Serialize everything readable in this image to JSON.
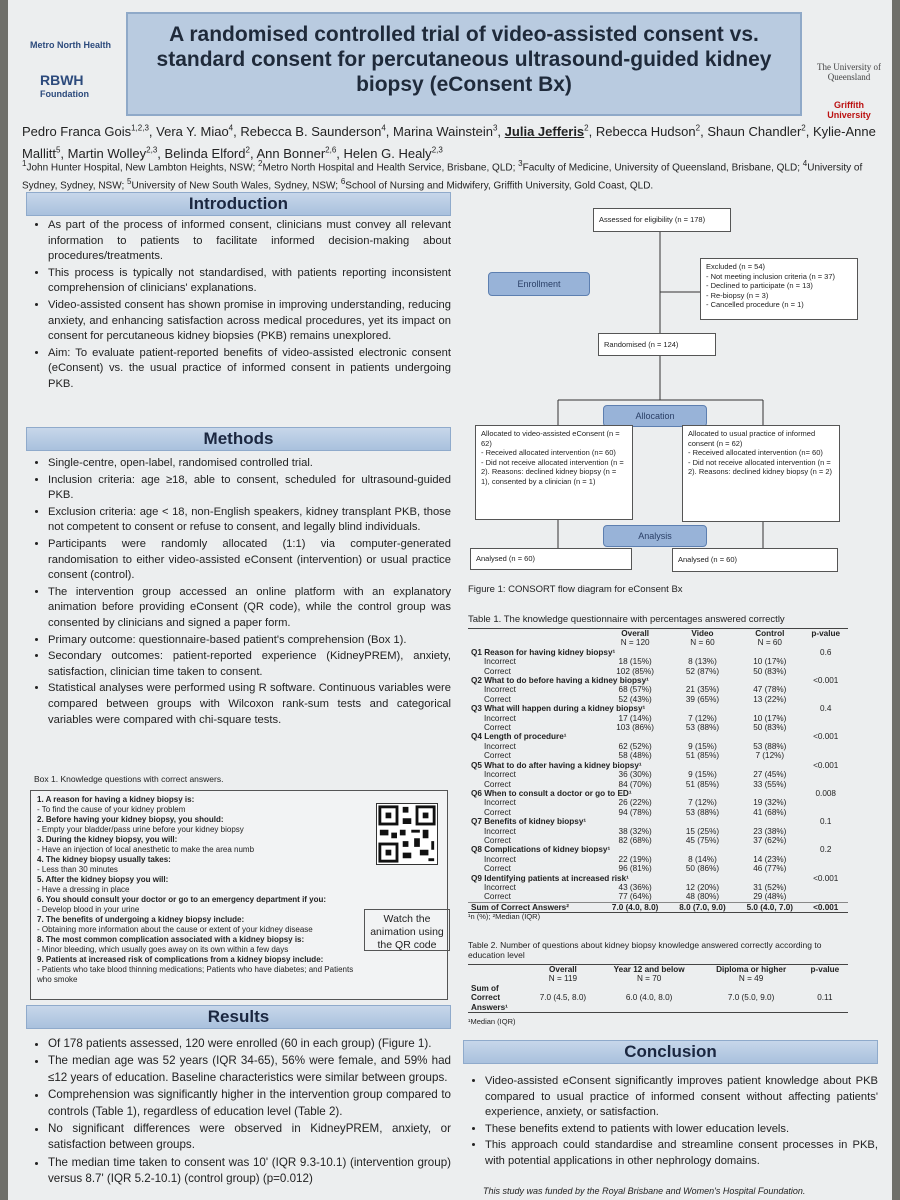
{
  "header": {
    "title": "A randomised controlled trial of video-assisted consent vs. standard consent for percutaneous ultrasound-guided kidney biopsy (eConsent Bx)",
    "logo_left_1": "Metro North Health",
    "logo_left_2": "RBWH",
    "logo_left_3": "Foundation",
    "logo_right_1": "The University of Queensland",
    "logo_right_2": "Griffith University",
    "authors": [
      {
        "name": "Pedro Franca Gois",
        "sup": "1,2,3",
        "sep": ","
      },
      {
        "name": "Vera Y. Miao",
        "sup": "4",
        "sep": ","
      },
      {
        "name": "Rebecca B. Saunderson",
        "sup": "4",
        "sep": ","
      },
      {
        "name": "Marina Wainstein",
        "sup": "3",
        "sep": ","
      },
      {
        "name": "Julia Jefferis",
        "sup": "2",
        "sep": ","
      },
      {
        "name": "Rebecca Hudson",
        "sup": "2",
        "sep": ","
      },
      {
        "name": "Shaun Chandler",
        "sup": "2",
        "sep": ","
      },
      {
        "name": "Kylie-Anne Mallitt",
        "sup": "5",
        "sep": ","
      },
      {
        "name": "Martin Wolley",
        "sup": "2,3",
        "sep": ","
      },
      {
        "name": "Belinda Elford",
        "sup": "2",
        "sep": ","
      },
      {
        "name": "Ann Bonner",
        "sup": "2,6",
        "sep": ","
      },
      {
        "name": "Helen G. Healy",
        "sup": "2,3"
      }
    ],
    "affiliations": [
      {
        "sup": "1",
        "text": "John Hunter Hospital, New Lambton Heights, NSW;"
      },
      {
        "sup": "2",
        "text": "Metro North Hospital and Health Service, Brisbane, QLD;"
      },
      {
        "sup": "3",
        "text": "Faculty of Medicine, University of Queensland, Brisbane, QLD;"
      },
      {
        "sup": "4",
        "text": "University of Sydney, Sydney, NSW;"
      },
      {
        "sup": "5",
        "text": "University of New South Wales, Sydney, NSW;"
      },
      {
        "sup": "6",
        "text": "School of Nursing and Midwifery, Griffith University, Gold Coast, QLD."
      }
    ]
  },
  "introduction": {
    "heading": "Introduction",
    "bullets": [
      "As part of the process of informed consent, clinicians must convey all relevant information to patients to facilitate informed decision-making about procedures/treatments.",
      "This process is typically not standardised, with patients reporting inconsistent comprehension of clinicians' explanations.",
      "Video-assisted consent has shown promise in improving understanding, reducing anxiety, and enhancing satisfaction across medical procedures, yet its impact on consent for percutaneous kidney biopsies (PKB) remains unexplored.",
      "Aim: To evaluate patient-reported benefits of video-assisted electronic consent (eConsent) vs. the usual practice of informed consent in patients undergoing PKB."
    ]
  },
  "methods": {
    "heading": "Methods",
    "bullets": [
      "Single-centre, open-label, randomised controlled trial.",
      "Inclusion criteria: age ≥18, able to consent, scheduled for ultrasound-guided PKB.",
      "Exclusion criteria: age < 18, non-English speakers, kidney transplant PKB, those not competent to consent or refuse to consent, and legally blind individuals.",
      "Participants were randomly allocated (1:1) via computer-generated randomisation to either video-assisted eConsent (intervention) or usual practice consent (control).",
      "The intervention group accessed an online platform with an explanatory animation before providing eConsent (QR code), while the control group was consented by clinicians and signed a paper form.",
      "Primary outcome: questionnaire-based patient's comprehension (Box 1).",
      "Secondary outcomes: patient-reported experience (KidneyPREM), anxiety, satisfaction, clinician time taken to consent.",
      "Statistical analyses were performed using R software. Continuous variables were compared between groups with Wilcoxon rank-sum tests and categorical variables were compared with chi-square tests."
    ]
  },
  "box1": {
    "title": "Box 1. Knowledge questions with correct answers.",
    "items": [
      {
        "q": "1. A reason for having a kidney biopsy is:",
        "a": "- To find the cause of your kidney problem"
      },
      {
        "q": "2. Before having your kidney biopsy, you should:",
        "a": "- Empty your bladder/pass urine before your kidney biopsy"
      },
      {
        "q": "3. During the kidney biopsy, you will:",
        "a": "- Have an injection of local anesthetic to make the area numb"
      },
      {
        "q": "4. The kidney biopsy usually takes:",
        "a": "- Less than 30 minutes"
      },
      {
        "q": "5. After the kidney biopsy you will:",
        "a": "- Have a dressing in place"
      },
      {
        "q": "6. You should consult your doctor or go to an emergency department if you:",
        "a": "- Develop blood in your urine"
      },
      {
        "q": "7. The benefits of undergoing a kidney biopsy include:",
        "a": "- Obtaining more information about the cause or extent of your kidney disease"
      },
      {
        "q": "8. The most common complication associated with a kidney biopsy is:",
        "a": "- Minor bleeding, which usually goes away on its own within a few days"
      },
      {
        "q": "9. Patients at increased risk of complications from a kidney biopsy include:",
        "a": "- Patients who take blood thinning medications; Patients who have diabetes; and Patients who smoke"
      }
    ],
    "qr_caption": "Watch the animation using the QR code"
  },
  "results": {
    "heading": "Results",
    "bullets": [
      "Of 178 patients assessed, 120 were enrolled (60 in each group) (Figure 1).",
      "The median age was 52 years (IQR 34-65), 56% were female, and 59% had ≤12 years of education. Baseline characteristics were similar between groups.",
      "Comprehension was significantly higher in the intervention group compared to controls (Table 1), regardless of education level (Table 2).",
      "No significant differences were observed in KidneyPREM, anxiety, or satisfaction between groups.",
      "The median time taken to consent was 10' (IQR 9.3-10.1) (intervention group) versus 8.7' (IQR 5.2-10.1) (control group) (p=0.012)"
    ]
  },
  "figure1": {
    "assessed": "Assessed for eligibility (n = 178)",
    "enrollment": "Enrollment",
    "excluded_title": "Excluded (n = 54)",
    "excluded_items": [
      "- Not meeting inclusion criteria (n = 37)",
      "- Declined to participate (n = 13)",
      "- Re-biopsy (n = 3)",
      "- Cancelled procedure (n = 1)"
    ],
    "randomised": "Randomised (n = 124)",
    "allocation": "Allocation",
    "left_alloc": [
      "Allocated to video-assisted eConsent (n = 62)",
      "- Received allocated intervention (n= 60)",
      "- Did not receive allocated intervention (n = 2). Reasons: declined kidney biopsy (n = 1), consented by a clinician (n = 1)"
    ],
    "right_alloc": [
      "Allocated to usual practice of informed consent (n = 62)",
      "- Received allocated intervention (n= 60)",
      "- Did not receive allocated intervention (n = 2). Reasons: declined kidney biopsy (n = 2)"
    ],
    "analysis": "Analysis",
    "left_analysed": "Analysed (n = 60)",
    "right_analysed": "Analysed (n = 60)",
    "caption": "Figure 1: CONSORT flow diagram for eConsent Bx"
  },
  "table1": {
    "title": "Table 1. The knowledge questionnaire with percentages answered correctly",
    "columns": [
      {
        "name": "Overall",
        "n": "N = 120"
      },
      {
        "name": "Video",
        "n": "N = 60"
      },
      {
        "name": "Control",
        "n": "N = 60"
      },
      {
        "name": "p-value"
      }
    ],
    "questions": [
      {
        "label": "Q1 Reason for having kidney biopsy¹",
        "p": "0.6",
        "rows": [
          [
            "Incorrect",
            "18 (15%)",
            "8 (13%)",
            "10 (17%)"
          ],
          [
            "Correct",
            "102 (85%)",
            "52 (87%)",
            "50 (83%)"
          ]
        ]
      },
      {
        "label": "Q2 What to do before having a kidney biopsy¹",
        "p": "<0.001",
        "rows": [
          [
            "Incorrect",
            "68 (57%)",
            "21 (35%)",
            "47 (78%)"
          ],
          [
            "Correct",
            "52 (43%)",
            "39 (65%)",
            "13 (22%)"
          ]
        ]
      },
      {
        "label": "Q3 What will happen during a kidney biopsy¹",
        "p": "0.4",
        "rows": [
          [
            "Incorrect",
            "17 (14%)",
            "7 (12%)",
            "10 (17%)"
          ],
          [
            "Correct",
            "103 (86%)",
            "53 (88%)",
            "50 (83%)"
          ]
        ]
      },
      {
        "label": "Q4 Length of procedure¹",
        "p": "<0.001",
        "rows": [
          [
            "Incorrect",
            "62 (52%)",
            "9 (15%)",
            "53 (88%)"
          ],
          [
            "Correct",
            "58 (48%)",
            "51 (85%)",
            "7 (12%)"
          ]
        ]
      },
      {
        "label": "Q5 What to do after having a kidney biopsy¹",
        "p": "<0.001",
        "rows": [
          [
            "Incorrect",
            "36 (30%)",
            "9 (15%)",
            "27 (45%)"
          ],
          [
            "Correct",
            "84 (70%)",
            "51 (85%)",
            "33 (55%)"
          ]
        ]
      },
      {
        "label": "Q6 When to consult a doctor or go to ED¹",
        "p": "0.008",
        "rows": [
          [
            "Incorrect",
            "26 (22%)",
            "7 (12%)",
            "19 (32%)"
          ],
          [
            "Correct",
            "94 (78%)",
            "53 (88%)",
            "41 (68%)"
          ]
        ]
      },
      {
        "label": "Q7 Benefits of kidney biopsy¹",
        "p": "0.1",
        "rows": [
          [
            "Incorrect",
            "38 (32%)",
            "15 (25%)",
            "23 (38%)"
          ],
          [
            "Correct",
            "82 (68%)",
            "45 (75%)",
            "37 (62%)"
          ]
        ]
      },
      {
        "label": "Q8 Complications of kidney biopsy¹",
        "p": "0.2",
        "rows": [
          [
            "Incorrect",
            "22 (19%)",
            "8 (14%)",
            "14 (23%)"
          ],
          [
            "Correct",
            "96 (81%)",
            "50 (86%)",
            "46 (77%)"
          ]
        ]
      },
      {
        "label": "Q9 Identifying patients at increased risk¹",
        "p": "<0.001",
        "rows": [
          [
            "Incorrect",
            "43 (36%)",
            "12 (20%)",
            "31 (52%)"
          ],
          [
            "Correct",
            "77 (64%)",
            "48 (80%)",
            "29 (48%)"
          ]
        ]
      }
    ],
    "sum_row": [
      "Sum of Correct Answers²",
      "7.0 (4.0, 8.0)",
      "8.0 (7.0, 9.0)",
      "5.0 (4.0, 7.0)",
      "<0.001"
    ],
    "footnote": "¹n (%); ²Median (IQR)"
  },
  "table2": {
    "title": "Table 2. Number of questions about kidney biopsy knowledge answered correctly according to education level",
    "columns": [
      {
        "name": "Overall",
        "n": "N = 119"
      },
      {
        "name": "Year 12 and below",
        "n": "N = 70"
      },
      {
        "name": "Diploma or higher",
        "n": "N = 49"
      },
      {
        "name": "p-value"
      }
    ],
    "row": [
      "Sum of Correct Answers¹",
      "7.0 (4.5, 8.0)",
      "6.0 (4.0, 8.0)",
      "7.0 (5.0, 9.0)",
      "0.11"
    ],
    "footnote": "¹Median (IQR)"
  },
  "conclusion": {
    "heading": "Conclusion",
    "bullets": [
      "Video-assisted eConsent significantly improves patient knowledge about PKB compared to usual practice of informed consent without affecting patients' experience, anxiety, or satisfaction.",
      "These benefits extend to patients with lower education levels.",
      "This approach could standardise and streamline consent processes in PKB, with potential applications in other nephrology domains."
    ]
  },
  "funding": "This study was funded by the Royal Brisbane and Women's Hospital Foundation."
}
